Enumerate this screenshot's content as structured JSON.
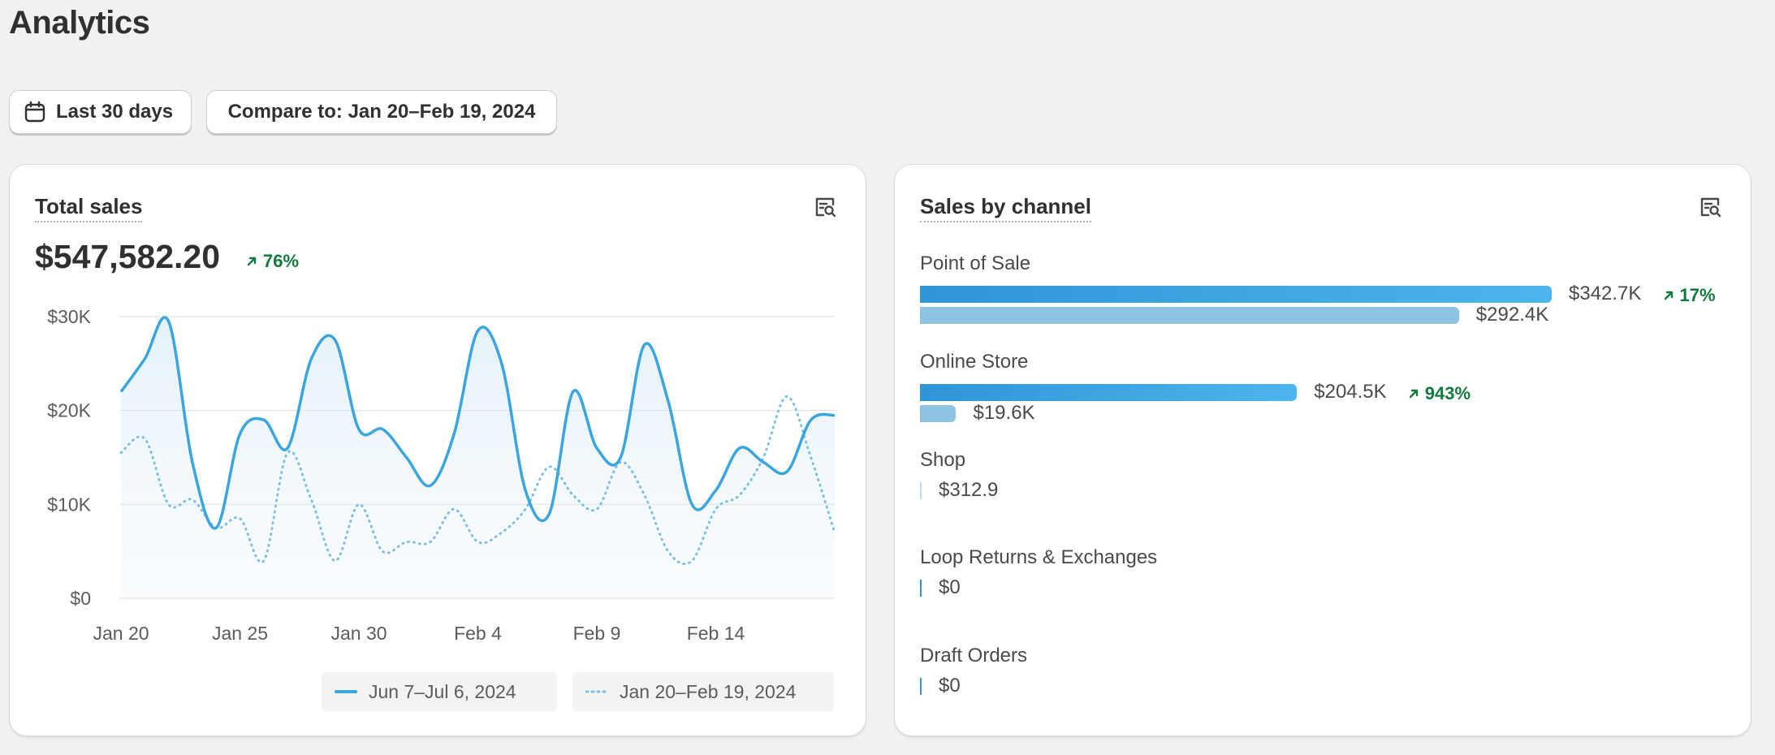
{
  "page": {
    "title": "Analytics"
  },
  "filters": {
    "date_range_label": "Last 30 days",
    "compare_label": "Compare to: Jan 20–Feb 19, 2024"
  },
  "total_sales": {
    "title": "Total sales",
    "value": "$547,582.20",
    "delta": "76%",
    "legend": {
      "current": "Jun 7–Jul 6, 2024",
      "previous": "Jan 20–Feb 19, 2024"
    },
    "colors": {
      "current": "#3aa5de",
      "previous": "#7dc0e6"
    }
  },
  "chart_data": {
    "type": "line",
    "x_labels": [
      "Jan 20",
      "Jan 25",
      "Jan 30",
      "Feb 4",
      "Feb 9",
      "Feb 14"
    ],
    "y_ticks": [
      "$30K",
      "$20K",
      "$10K",
      "$0"
    ],
    "ylim": [
      0,
      30000
    ],
    "x_count": 31,
    "series": [
      {
        "name": "Jun 7–Jul 6, 2024",
        "style": "solid",
        "values": [
          22000,
          25500,
          29500,
          14500,
          7500,
          17500,
          19000,
          16000,
          25500,
          27500,
          18000,
          18000,
          15000,
          12000,
          17500,
          28500,
          25000,
          11500,
          9000,
          22000,
          16000,
          15000,
          27000,
          21000,
          10000,
          11500,
          16000,
          14500,
          13500,
          19000,
          19500
        ]
      },
      {
        "name": "Jan 20–Feb 19, 2024",
        "style": "dotted",
        "values": [
          15500,
          17000,
          10000,
          10500,
          7500,
          8500,
          4000,
          15500,
          10500,
          4000,
          10000,
          5000,
          6000,
          6000,
          9500,
          6000,
          7000,
          9500,
          14000,
          11000,
          9500,
          14500,
          11000,
          5000,
          4000,
          9500,
          11000,
          15000,
          21500,
          15000,
          7000
        ]
      }
    ]
  },
  "sales_by_channel": {
    "title": "Sales by channel",
    "channels": [
      {
        "name": "Point of Sale",
        "current": "$342.7K",
        "previous": "$292.4K",
        "delta": "17%",
        "current_value": 342.7,
        "previous_value": 292.4
      },
      {
        "name": "Online Store",
        "current": "$204.5K",
        "previous": "$19.6K",
        "delta": "943%",
        "current_value": 204.5,
        "previous_value": 19.6
      },
      {
        "name": "Shop",
        "current": "$312.9",
        "current_value": 0.3129
      },
      {
        "name": "Loop Returns & Exchanges",
        "current": "$0",
        "current_value": 0
      },
      {
        "name": "Draft Orders",
        "current": "$0",
        "current_value": 0
      }
    ]
  }
}
